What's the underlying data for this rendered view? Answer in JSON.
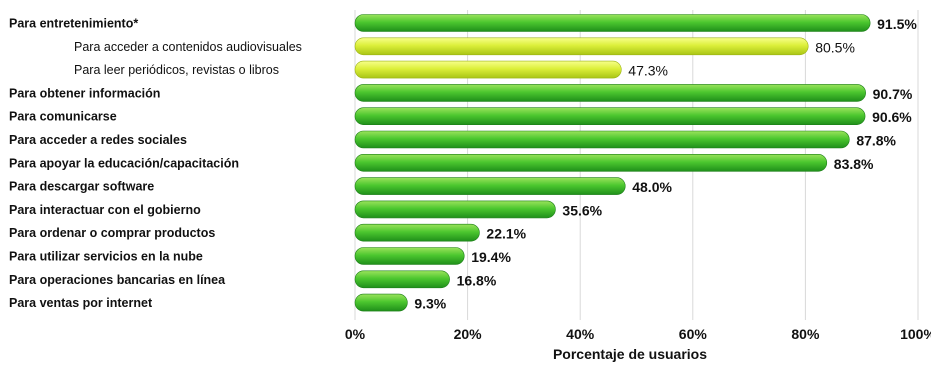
{
  "chart_data": {
    "type": "bar",
    "orientation": "horizontal",
    "title": "",
    "xlabel": "Porcentaje de usuarios",
    "ylabel": "",
    "xlim": [
      0,
      100
    ],
    "grid": true,
    "x_ticks": [
      "0%",
      "20%",
      "40%",
      "60%",
      "80%",
      "100%"
    ],
    "categories": [
      {
        "label": "Para entretenimiento*",
        "value": 91.5,
        "value_label": "91.5%",
        "level": 0,
        "color": "green"
      },
      {
        "label": "Para acceder a contenidos audiovisuales",
        "value": 80.5,
        "value_label": "80.5%",
        "level": 1,
        "color": "yellow"
      },
      {
        "label": "Para leer periódicos, revistas o libros",
        "value": 47.3,
        "value_label": "47.3%",
        "level": 1,
        "color": "yellow"
      },
      {
        "label": "Para obtener información",
        "value": 90.7,
        "value_label": "90.7%",
        "level": 0,
        "color": "green"
      },
      {
        "label": "Para comunicarse",
        "value": 90.6,
        "value_label": "90.6%",
        "level": 0,
        "color": "green"
      },
      {
        "label": "Para acceder a redes sociales",
        "value": 87.8,
        "value_label": "87.8%",
        "level": 0,
        "color": "green"
      },
      {
        "label": "Para apoyar la educación/capacitación",
        "value": 83.8,
        "value_label": "83.8%",
        "level": 0,
        "color": "green"
      },
      {
        "label": "Para descargar software",
        "value": 48.0,
        "value_label": "48.0%",
        "level": 0,
        "color": "green"
      },
      {
        "label": "Para interactuar con el gobierno",
        "value": 35.6,
        "value_label": "35.6%",
        "level": 0,
        "color": "green"
      },
      {
        "label": "Para ordenar o comprar productos",
        "value": 22.1,
        "value_label": "22.1%",
        "level": 0,
        "color": "green"
      },
      {
        "label": "Para utilizar servicios en la nube",
        "value": 19.4,
        "value_label": "19.4%",
        "level": 0,
        "color": "green"
      },
      {
        "label": "Para operaciones bancarias en línea",
        "value": 16.8,
        "value_label": "16.8%",
        "level": 0,
        "color": "green"
      },
      {
        "label": "Para ventas por internet",
        "value": 9.3,
        "value_label": "9.3%",
        "level": 0,
        "color": "green"
      }
    ],
    "colors": {
      "green_light": "#9be35c",
      "green_mid": "#3fbf2a",
      "green_dark": "#1f8f1a",
      "yellow_light": "#f7ff8a",
      "yellow_mid": "#dcef3a",
      "yellow_dark": "#a9c515",
      "grid": "#d9d9d9"
    }
  }
}
